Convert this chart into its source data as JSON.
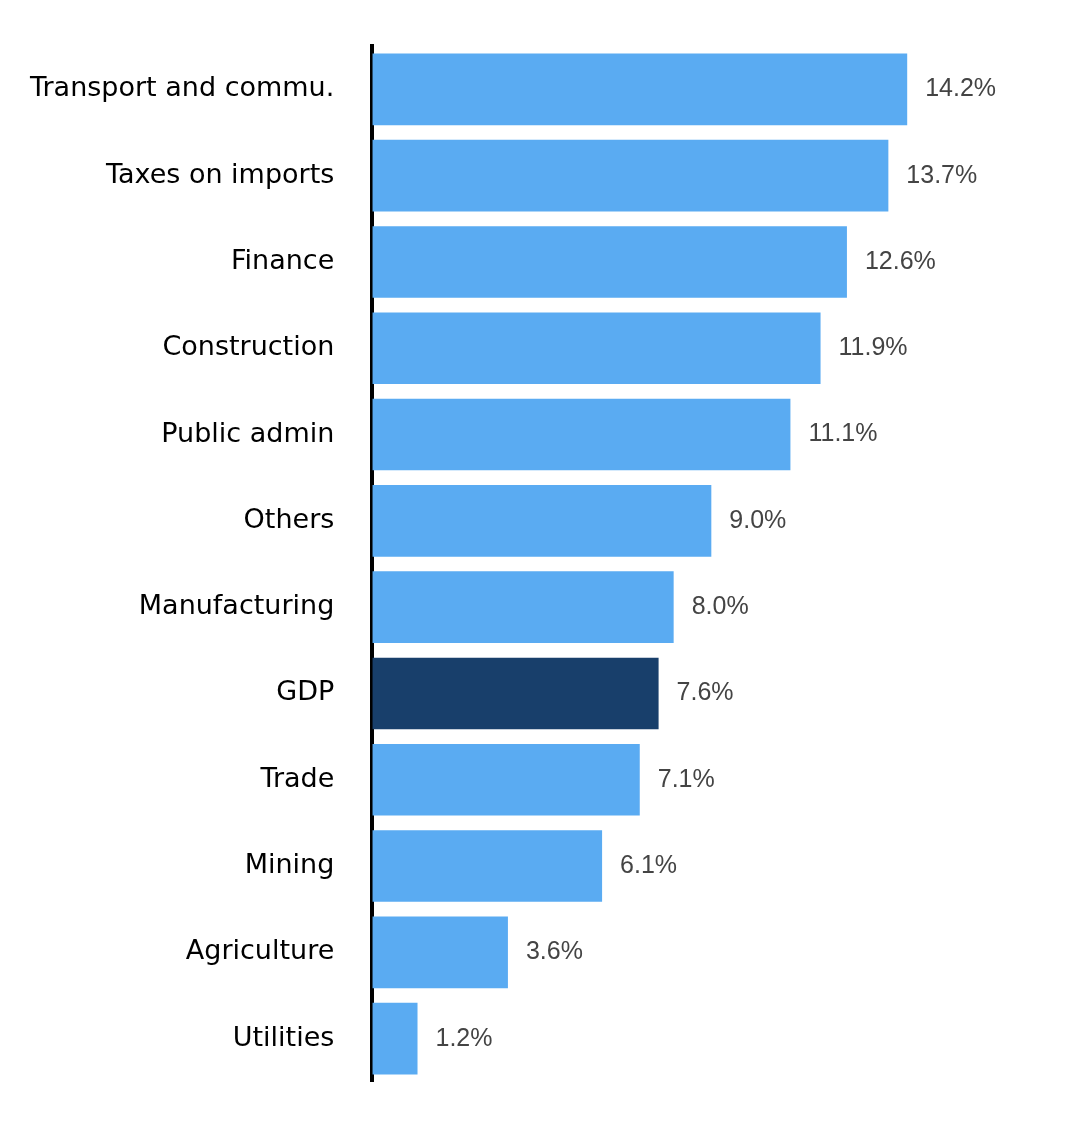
{
  "chart_data": {
    "type": "bar",
    "orientation": "horizontal",
    "tick_labels": "y",
    "categories": [
      "Transport and commu.",
      "Taxes on imports",
      "Finance",
      "Construction",
      "Public admin",
      "Others",
      "Manufacturing",
      "GDP",
      "Trade",
      "Mining",
      "Agriculture",
      "Utilities"
    ],
    "values": [
      14.2,
      13.7,
      12.6,
      11.9,
      11.1,
      9.0,
      8.0,
      7.6,
      7.1,
      6.1,
      3.6,
      1.2
    ],
    "value_labels": [
      "14.2%",
      "13.7%",
      "12.6%",
      "11.9%",
      "11.1%",
      "9.0%",
      "8.0%",
      "7.6%",
      "7.1%",
      "6.1%",
      "3.6%",
      "1.2%"
    ],
    "colors": [
      "#5aabf2",
      "#5aabf2",
      "#5aabf2",
      "#5aabf2",
      "#5aabf2",
      "#5aabf2",
      "#5aabf2",
      "#183f6b",
      "#5aabf2",
      "#5aabf2",
      "#5aabf2",
      "#5aabf2"
    ]
  }
}
